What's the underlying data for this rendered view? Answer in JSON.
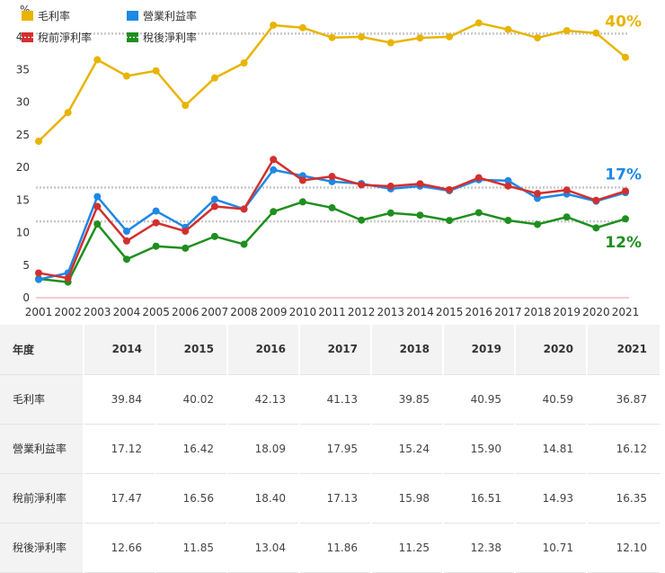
{
  "chart_data": {
    "type": "line",
    "ylabel": "%",
    "ylim": [
      0,
      45
    ],
    "yticks": [
      0,
      5,
      10,
      15,
      20,
      25,
      30,
      35,
      40
    ],
    "grid": false,
    "legend_position": "top-left",
    "x": [
      "2001",
      "2002",
      "2003",
      "2004",
      "2005",
      "2006",
      "2007",
      "2008",
      "2009",
      "2010",
      "2011",
      "2012",
      "2013",
      "2014",
      "2015",
      "2016",
      "2017",
      "2018",
      "2019",
      "2020",
      "2021"
    ],
    "series": [
      {
        "name": "毛利率",
        "color": "#e8b400",
        "values": [
          24.0,
          28.4,
          36.5,
          34.0,
          34.8,
          29.5,
          33.7,
          36.0,
          41.8,
          41.4,
          39.9,
          40.0,
          39.1,
          39.84,
          40.02,
          42.13,
          41.13,
          39.85,
          40.95,
          40.59,
          36.87
        ],
        "reference": 40.5,
        "end_label": "40%"
      },
      {
        "name": "營業利益率",
        "color": "#1e88e5",
        "values": [
          2.8,
          3.8,
          15.5,
          10.2,
          13.3,
          10.8,
          15.1,
          13.6,
          19.6,
          18.7,
          17.8,
          17.5,
          16.7,
          17.12,
          16.42,
          18.09,
          17.95,
          15.24,
          15.9,
          14.81,
          16.12
        ],
        "reference": 16.9,
        "end_label": "17%"
      },
      {
        "name": "稅前淨利率",
        "color": "#d32f2f",
        "values": [
          3.8,
          3.0,
          14.0,
          8.7,
          11.5,
          10.2,
          14.0,
          13.6,
          21.2,
          18.0,
          18.6,
          17.3,
          17.1,
          17.47,
          16.56,
          18.4,
          17.13,
          15.98,
          16.51,
          14.93,
          16.35
        ]
      },
      {
        "name": "稅後淨利率",
        "color": "#1e8f1e",
        "values": [
          2.9,
          2.4,
          11.3,
          5.9,
          7.9,
          7.6,
          9.4,
          8.2,
          13.2,
          14.7,
          13.8,
          11.9,
          13.0,
          12.66,
          11.85,
          13.04,
          11.86,
          11.25,
          12.38,
          10.71,
          12.1
        ],
        "reference": 11.7,
        "end_label": "12%"
      }
    ]
  },
  "table": {
    "header": [
      "年度",
      "2014",
      "2015",
      "2016",
      "2017",
      "2018",
      "2019",
      "2020",
      "2021"
    ],
    "rows": [
      [
        "毛利率",
        "39.84",
        "40.02",
        "42.13",
        "41.13",
        "39.85",
        "40.95",
        "40.59",
        "36.87"
      ],
      [
        "營業利益率",
        "17.12",
        "16.42",
        "18.09",
        "17.95",
        "15.24",
        "15.90",
        "14.81",
        "16.12"
      ],
      [
        "稅前淨利率",
        "17.47",
        "16.56",
        "18.40",
        "17.13",
        "15.98",
        "16.51",
        "14.93",
        "16.35"
      ],
      [
        "稅後淨利率",
        "12.66",
        "11.85",
        "13.04",
        "11.86",
        "11.25",
        "12.38",
        "10.71",
        "12.10"
      ]
    ]
  }
}
